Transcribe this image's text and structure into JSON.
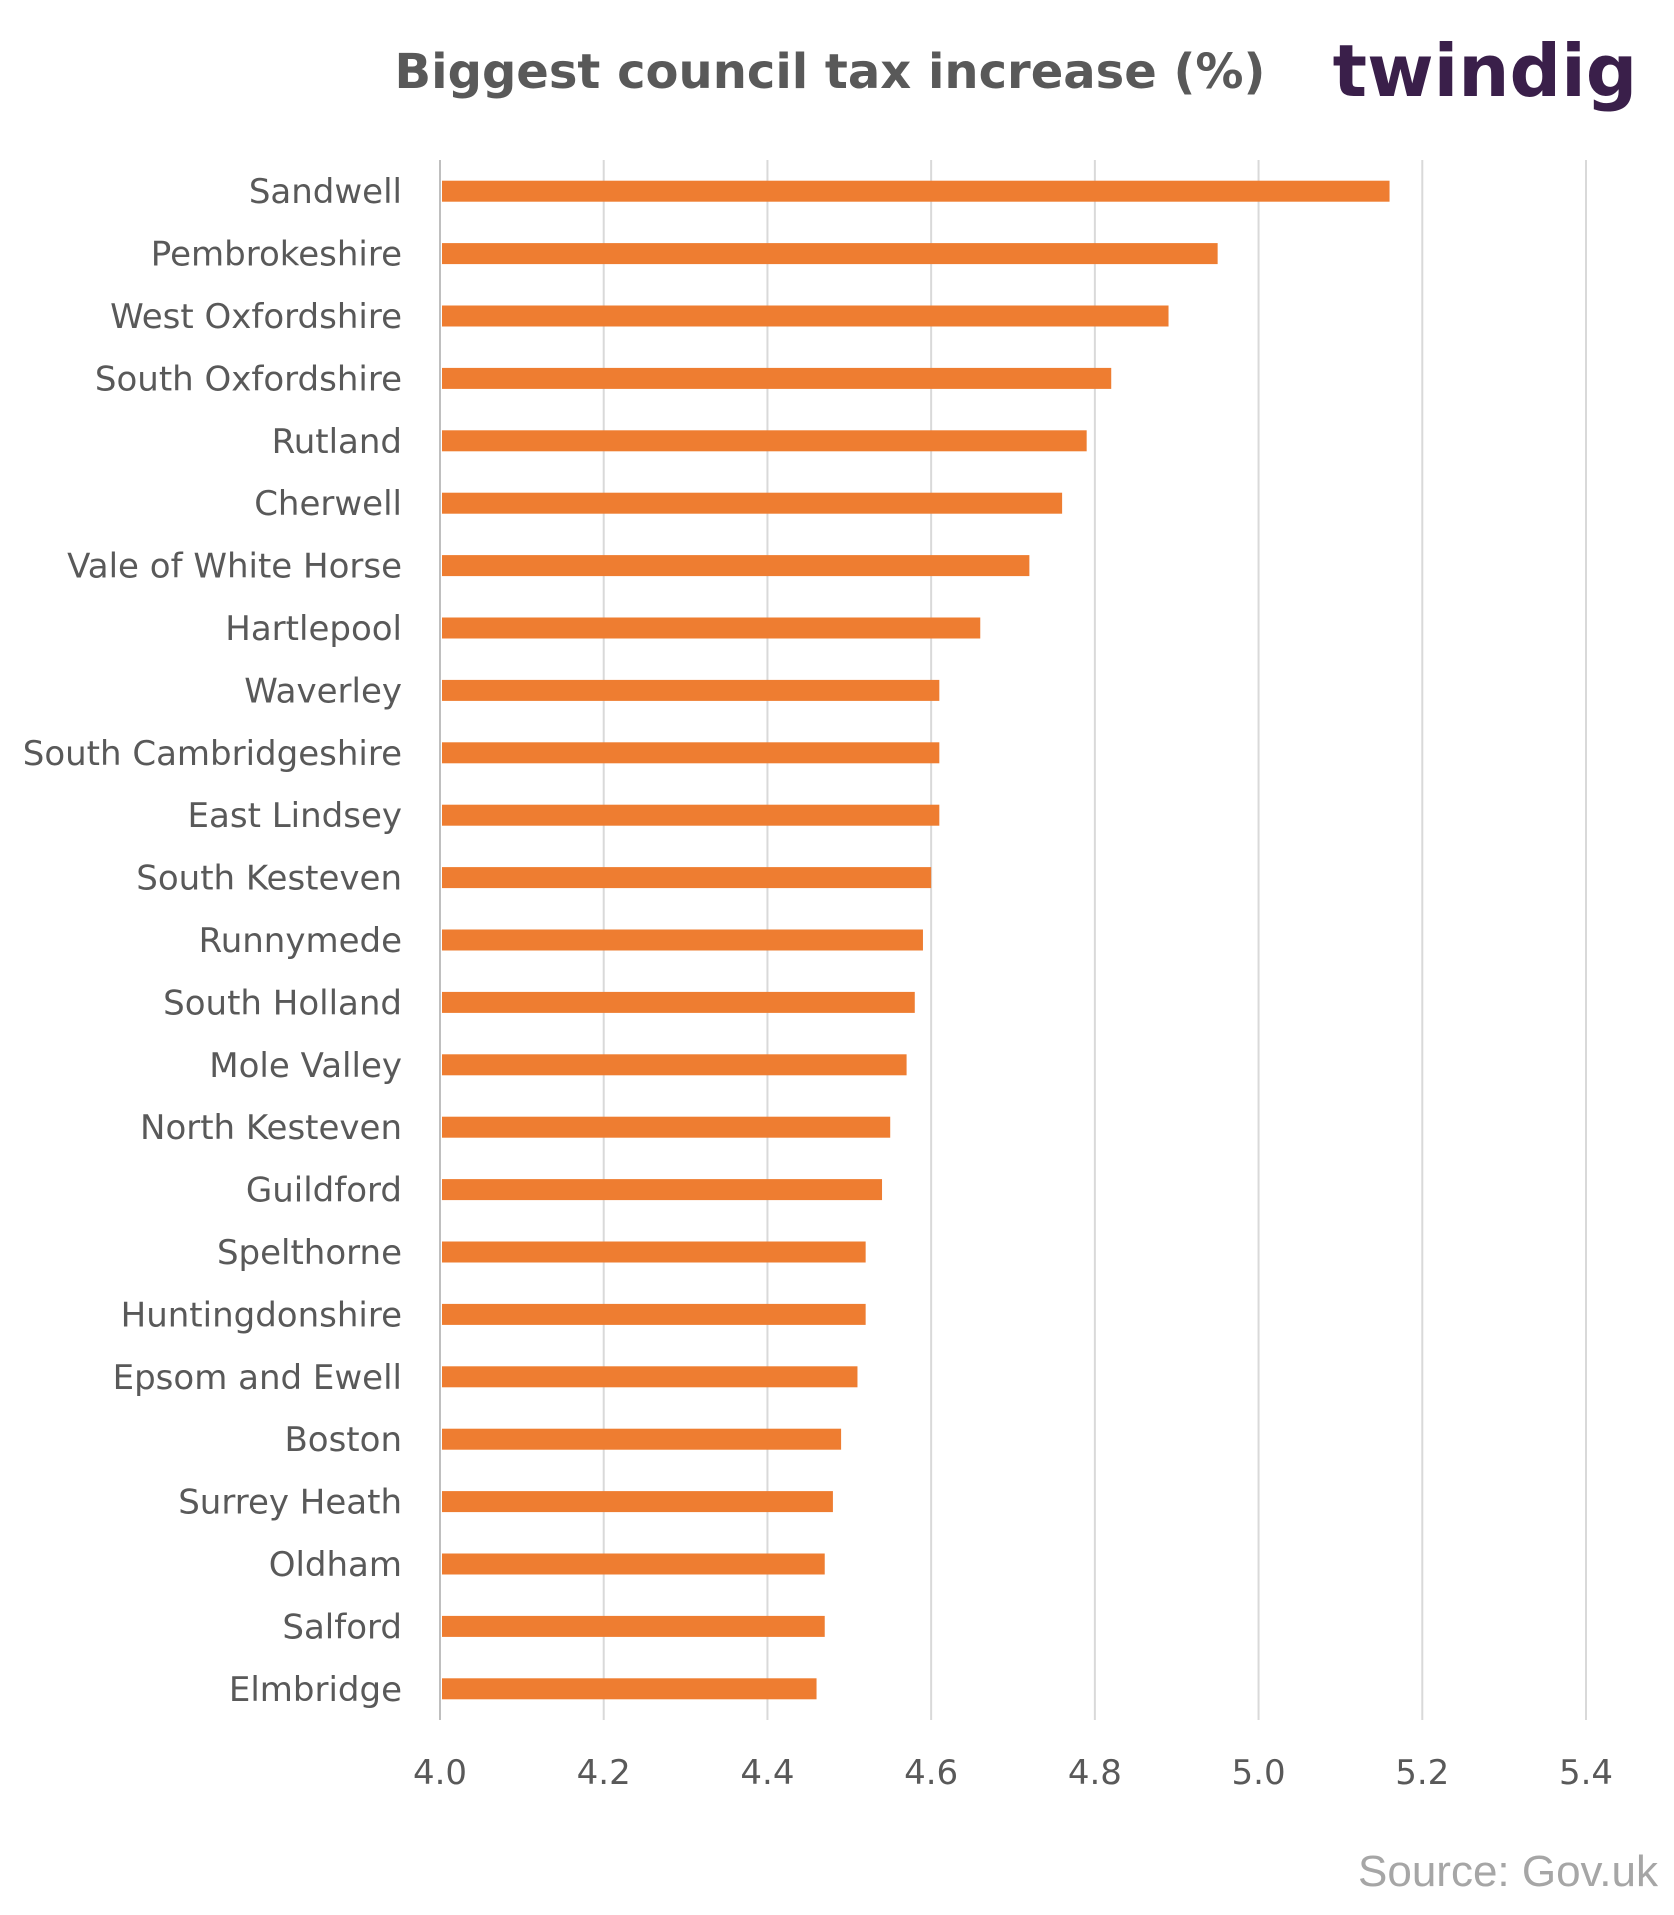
{
  "brand": {
    "name": "twindig",
    "accent_color": "#ee7d31"
  },
  "source": "Source: Gov.uk",
  "chart_data": {
    "type": "bar",
    "orientation": "horizontal",
    "title": "Biggest council tax increase (%)",
    "xlabel": "",
    "ylabel": "",
    "xlim": [
      4.0,
      5.4
    ],
    "xticks": [
      "4.0",
      "4.2",
      "4.4",
      "4.6",
      "4.8",
      "5.0",
      "5.2",
      "5.4"
    ],
    "grid": "vertical gridlines",
    "legend": "none",
    "bar_color": "#ee7d31",
    "categories": [
      "Sandwell",
      "Pembrokeshire",
      "West Oxfordshire",
      "South Oxfordshire",
      "Rutland",
      "Cherwell",
      "Vale of White Horse",
      "Hartlepool",
      "Waverley",
      "South Cambridgeshire",
      "East Lindsey",
      "South Kesteven",
      "Runnymede",
      "South Holland",
      "Mole Valley",
      "North Kesteven",
      "Guildford",
      "Spelthorne",
      "Huntingdonshire",
      "Epsom and Ewell",
      "Boston",
      "Surrey Heath",
      "Oldham",
      "Salford",
      "Elmbridge"
    ],
    "values": [
      5.16,
      4.95,
      4.89,
      4.82,
      4.79,
      4.76,
      4.72,
      4.66,
      4.61,
      4.61,
      4.61,
      4.6,
      4.59,
      4.58,
      4.57,
      4.55,
      4.54,
      4.52,
      4.52,
      4.51,
      4.49,
      4.48,
      4.47,
      4.47,
      4.46
    ]
  }
}
